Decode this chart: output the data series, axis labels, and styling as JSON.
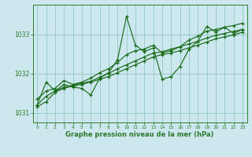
{
  "xlabel": "Graphe pression niveau de la mer (hPa)",
  "background_color": "#cce8ee",
  "grid_color": "#99cccc",
  "line_color": "#1a6b1a",
  "spine_color": "#2d7a2d",
  "ylim": [
    1030.75,
    1033.75
  ],
  "yticks": [
    1031,
    1032,
    1033
  ],
  "xlim": [
    -0.5,
    23.5
  ],
  "xticks": [
    0,
    1,
    2,
    3,
    4,
    5,
    6,
    7,
    8,
    9,
    10,
    11,
    12,
    13,
    14,
    15,
    16,
    17,
    18,
    19,
    20,
    21,
    22,
    23
  ],
  "series": [
    [
      1031.2,
      1031.78,
      1031.55,
      1031.72,
      1031.65,
      1031.62,
      1031.45,
      1031.88,
      1032.02,
      1032.35,
      1033.45,
      1032.72,
      1032.55,
      1032.65,
      1031.85,
      1031.92,
      1032.18,
      1032.62,
      1032.82,
      1033.2,
      1033.05,
      1033.18,
      1033.02,
      1033.12
    ],
    [
      1031.35,
      1031.55,
      1031.62,
      1031.82,
      1031.72,
      1031.78,
      1031.88,
      1032.02,
      1032.12,
      1032.28,
      1032.48,
      1032.58,
      1032.62,
      1032.72,
      1032.52,
      1032.58,
      1032.68,
      1032.85,
      1032.95,
      1033.08,
      1033.12,
      1033.18,
      1033.22,
      1033.28
    ],
    [
      1031.2,
      1031.42,
      1031.55,
      1031.65,
      1031.7,
      1031.75,
      1031.8,
      1031.9,
      1032.0,
      1032.12,
      1032.22,
      1032.32,
      1032.42,
      1032.52,
      1032.55,
      1032.62,
      1032.68,
      1032.75,
      1032.82,
      1032.9,
      1032.97,
      1033.02,
      1033.07,
      1033.12
    ],
    [
      1031.15,
      1031.28,
      1031.52,
      1031.62,
      1031.68,
      1031.72,
      1031.78,
      1031.85,
      1031.92,
      1032.02,
      1032.12,
      1032.22,
      1032.32,
      1032.42,
      1032.48,
      1032.52,
      1032.58,
      1032.65,
      1032.72,
      1032.8,
      1032.88,
      1032.93,
      1032.98,
      1033.05
    ]
  ]
}
